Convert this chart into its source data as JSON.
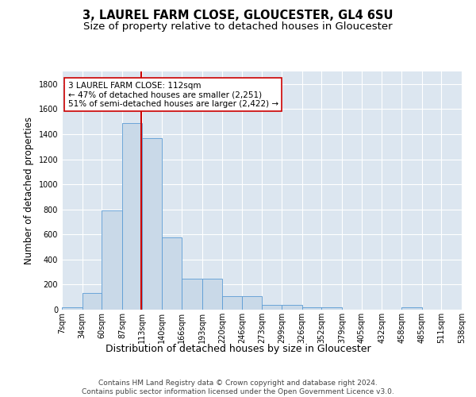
{
  "title1": "3, LAUREL FARM CLOSE, GLOUCESTER, GL4 6SU",
  "title2": "Size of property relative to detached houses in Gloucester",
  "xlabel": "Distribution of detached houses by size in Gloucester",
  "ylabel": "Number of detached properties",
  "bin_edges": [
    7,
    34,
    60,
    87,
    113,
    140,
    166,
    193,
    220,
    246,
    273,
    299,
    326,
    352,
    379,
    405,
    432,
    458,
    485,
    511,
    538
  ],
  "bar_heights": [
    20,
    135,
    790,
    1490,
    1370,
    575,
    245,
    245,
    110,
    110,
    35,
    35,
    20,
    20,
    0,
    0,
    0,
    20,
    0,
    0
  ],
  "bar_color": "#c9d9e8",
  "bar_edgecolor": "#5b9bd5",
  "property_size": 112,
  "vline_color": "#cc0000",
  "annotation_line1": "3 LAUREL FARM CLOSE: 112sqm",
  "annotation_line2": "← 47% of detached houses are smaller (2,251)",
  "annotation_line3": "51% of semi-detached houses are larger (2,422) →",
  "annotation_box_color": "#ffffff",
  "annotation_box_edgecolor": "#cc0000",
  "ylim": [
    0,
    1900
  ],
  "yticks": [
    0,
    200,
    400,
    600,
    800,
    1000,
    1200,
    1400,
    1600,
    1800
  ],
  "background_color": "#dce6f0",
  "footer_text": "Contains HM Land Registry data © Crown copyright and database right 2024.\nContains public sector information licensed under the Open Government Licence v3.0.",
  "title1_fontsize": 10.5,
  "title2_fontsize": 9.5,
  "xlabel_fontsize": 9,
  "ylabel_fontsize": 8.5,
  "tick_fontsize": 7,
  "annotation_fontsize": 7.5,
  "footer_fontsize": 6.5
}
